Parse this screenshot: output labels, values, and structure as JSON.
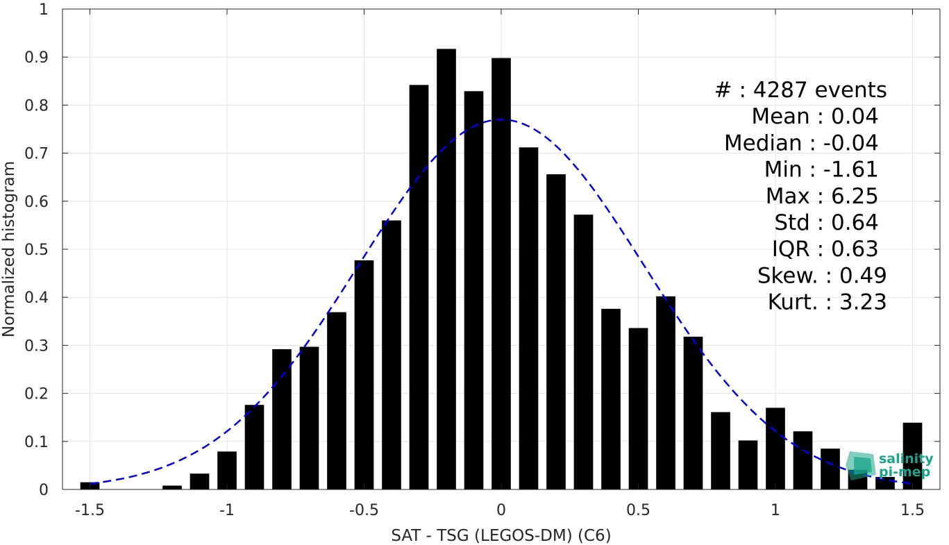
{
  "chart_data": {
    "type": "bar",
    "xlabel": "SAT - TSG (LEGOS-DM) (C6)",
    "ylabel": "Normalized histogram",
    "xlim": [
      -1.6,
      1.6
    ],
    "ylim": [
      0,
      1
    ],
    "xticks": [
      -1.5,
      -1,
      -0.5,
      0,
      0.5,
      1,
      1.5
    ],
    "xtick_labels": [
      "-1.5",
      "-1",
      "-0.5",
      "0",
      "0.5",
      "1",
      "1.5"
    ],
    "yticks": [
      0,
      0.1,
      0.2,
      0.3,
      0.4,
      0.5,
      0.6,
      0.7,
      0.8,
      0.9,
      1
    ],
    "ytick_labels": [
      "0",
      "0.1",
      "0.2",
      "0.3",
      "0.4",
      "0.5",
      "0.6",
      "0.7",
      "0.8",
      "0.9",
      "1"
    ],
    "grid": true,
    "bar_color": "#000000",
    "bar_width": 0.07,
    "bins": [
      {
        "x": -1.5,
        "y": 0.015
      },
      {
        "x": -1.4,
        "y": 0
      },
      {
        "x": -1.3,
        "y": 0
      },
      {
        "x": -1.2,
        "y": 0.008
      },
      {
        "x": -1.1,
        "y": 0.033
      },
      {
        "x": -1.0,
        "y": 0.079
      },
      {
        "x": -0.9,
        "y": 0.176
      },
      {
        "x": -0.8,
        "y": 0.292
      },
      {
        "x": -0.7,
        "y": 0.297
      },
      {
        "x": -0.6,
        "y": 0.369
      },
      {
        "x": -0.5,
        "y": 0.477
      },
      {
        "x": -0.4,
        "y": 0.56
      },
      {
        "x": -0.3,
        "y": 0.842
      },
      {
        "x": -0.2,
        "y": 0.917
      },
      {
        "x": -0.1,
        "y": 0.829
      },
      {
        "x": 0.0,
        "y": 0.898
      },
      {
        "x": 0.1,
        "y": 0.712
      },
      {
        "x": 0.2,
        "y": 0.656
      },
      {
        "x": 0.3,
        "y": 0.572
      },
      {
        "x": 0.4,
        "y": 0.376
      },
      {
        "x": 0.5,
        "y": 0.336
      },
      {
        "x": 0.6,
        "y": 0.402
      },
      {
        "x": 0.7,
        "y": 0.318
      },
      {
        "x": 0.8,
        "y": 0.161
      },
      {
        "x": 0.9,
        "y": 0.102
      },
      {
        "x": 1.0,
        "y": 0.17
      },
      {
        "x": 1.1,
        "y": 0.121
      },
      {
        "x": 1.2,
        "y": 0.085
      },
      {
        "x": 1.3,
        "y": 0.041
      },
      {
        "x": 1.4,
        "y": 0.026
      },
      {
        "x": 1.5,
        "y": 0.139
      }
    ],
    "fit_curve": {
      "type": "gaussian",
      "style": "dashed",
      "color": "#0000e6",
      "mean": 0.0,
      "sigma": 0.52,
      "peak": 0.77,
      "x_range": [
        -1.5,
        1.5
      ]
    },
    "annotations": [
      {
        "text": "#  : 4287 events",
        "anchor": "end-offset"
      },
      {
        "text": "Mean : 0.04"
      },
      {
        "text": "Median : -0.04"
      },
      {
        "text": "Min : -1.61"
      },
      {
        "text": "Max : 6.25"
      },
      {
        "text": "Std : 0.64"
      },
      {
        "text": "IQR : 0.63"
      },
      {
        "text": "Skew. : 0.49"
      },
      {
        "text": "Kurt. : 3.23"
      }
    ]
  },
  "logo": {
    "line1": "salinity",
    "line2": "pi-mep",
    "color": "#1aa58a"
  }
}
